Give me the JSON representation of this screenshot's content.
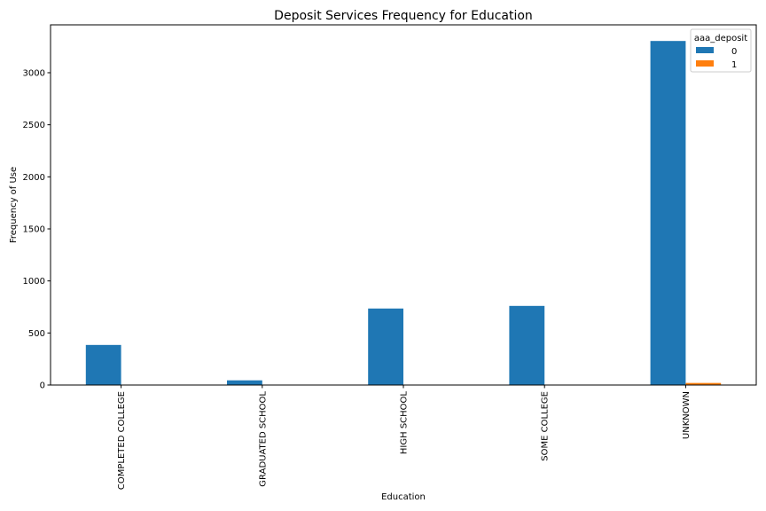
{
  "chart_data": {
    "type": "bar",
    "title": "Deposit Services Frequency for Education",
    "xlabel": "Education",
    "ylabel": "Frequency of Use",
    "categories": [
      "COMPLETED COLLEGE",
      "GRADUATED SCHOOL",
      "HIGH SCHOOL",
      "SOME COLLEGE",
      "UNKNOWN"
    ],
    "series": [
      {
        "name": "0",
        "values": [
          385,
          45,
          735,
          760,
          3305
        ],
        "color": "#1f77b4"
      },
      {
        "name": "1",
        "values": [
          2,
          0,
          3,
          2,
          20
        ],
        "color": "#ff7f0e"
      }
    ],
    "ylim": [
      0,
      3460
    ],
    "yticks": [
      0,
      500,
      1000,
      1500,
      2000,
      2500,
      3000
    ],
    "legend": {
      "title": "aaa_deposit",
      "placement": "top-right"
    },
    "grid": false
  }
}
